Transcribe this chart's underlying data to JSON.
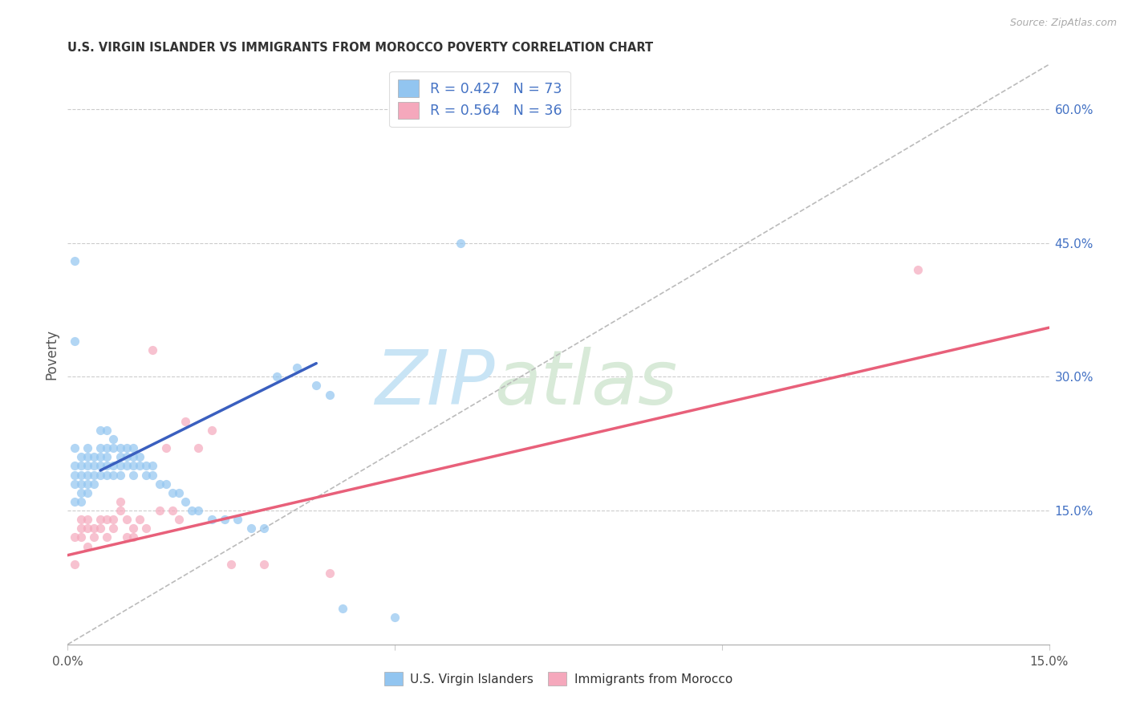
{
  "title": "U.S. VIRGIN ISLANDER VS IMMIGRANTS FROM MOROCCO POVERTY CORRELATION CHART",
  "source": "Source: ZipAtlas.com",
  "ylabel": "Poverty",
  "x_min": 0.0,
  "x_max": 0.15,
  "y_min": 0.0,
  "y_max": 0.65,
  "y_ticks": [
    0.15,
    0.3,
    0.45,
    0.6
  ],
  "y_tick_labels": [
    "15.0%",
    "30.0%",
    "45.0%",
    "60.0%"
  ],
  "legend_r1": "R = 0.427",
  "legend_n1": "N = 73",
  "legend_r2": "R = 0.564",
  "legend_n2": "N = 36",
  "color_blue": "#92C5F0",
  "color_pink": "#F5A8BC",
  "color_blue_text": "#4472C4",
  "trend_blue_color": "#3A5FBF",
  "trend_pink_color": "#E8607A",
  "trend_dash_color": "#BBBBBB",
  "watermark_zip": "ZIP",
  "watermark_atlas": "atlas",
  "label_blue": "U.S. Virgin Islanders",
  "label_pink": "Immigrants from Morocco",
  "blue_scatter_x": [
    0.001,
    0.001,
    0.001,
    0.001,
    0.001,
    0.002,
    0.002,
    0.002,
    0.002,
    0.002,
    0.002,
    0.003,
    0.003,
    0.003,
    0.003,
    0.003,
    0.003,
    0.004,
    0.004,
    0.004,
    0.004,
    0.005,
    0.005,
    0.005,
    0.005,
    0.005,
    0.006,
    0.006,
    0.006,
    0.006,
    0.006,
    0.007,
    0.007,
    0.007,
    0.007,
    0.008,
    0.008,
    0.008,
    0.008,
    0.009,
    0.009,
    0.009,
    0.01,
    0.01,
    0.01,
    0.01,
    0.011,
    0.011,
    0.012,
    0.012,
    0.013,
    0.013,
    0.014,
    0.015,
    0.016,
    0.017,
    0.018,
    0.019,
    0.02,
    0.022,
    0.024,
    0.026,
    0.028,
    0.03,
    0.032,
    0.035,
    0.038,
    0.04,
    0.042,
    0.05,
    0.001,
    0.001,
    0.06
  ],
  "blue_scatter_y": [
    0.22,
    0.2,
    0.19,
    0.18,
    0.16,
    0.21,
    0.2,
    0.19,
    0.18,
    0.17,
    0.16,
    0.22,
    0.21,
    0.2,
    0.19,
    0.18,
    0.17,
    0.21,
    0.2,
    0.19,
    0.18,
    0.24,
    0.22,
    0.21,
    0.2,
    0.19,
    0.24,
    0.22,
    0.21,
    0.2,
    0.19,
    0.23,
    0.22,
    0.2,
    0.19,
    0.22,
    0.21,
    0.2,
    0.19,
    0.22,
    0.21,
    0.2,
    0.22,
    0.21,
    0.2,
    0.19,
    0.21,
    0.2,
    0.2,
    0.19,
    0.2,
    0.19,
    0.18,
    0.18,
    0.17,
    0.17,
    0.16,
    0.15,
    0.15,
    0.14,
    0.14,
    0.14,
    0.13,
    0.13,
    0.3,
    0.31,
    0.29,
    0.28,
    0.04,
    0.03,
    0.34,
    0.43,
    0.45
  ],
  "pink_scatter_x": [
    0.001,
    0.002,
    0.002,
    0.002,
    0.003,
    0.003,
    0.003,
    0.004,
    0.004,
    0.005,
    0.005,
    0.006,
    0.006,
    0.007,
    0.007,
    0.008,
    0.008,
    0.009,
    0.009,
    0.01,
    0.01,
    0.011,
    0.012,
    0.013,
    0.014,
    0.015,
    0.016,
    0.017,
    0.018,
    0.02,
    0.022,
    0.025,
    0.03,
    0.04,
    0.13,
    0.001
  ],
  "pink_scatter_y": [
    0.12,
    0.14,
    0.13,
    0.12,
    0.14,
    0.13,
    0.11,
    0.13,
    0.12,
    0.14,
    0.13,
    0.14,
    0.12,
    0.14,
    0.13,
    0.16,
    0.15,
    0.14,
    0.12,
    0.13,
    0.12,
    0.14,
    0.13,
    0.33,
    0.15,
    0.22,
    0.15,
    0.14,
    0.25,
    0.22,
    0.24,
    0.09,
    0.09,
    0.08,
    0.42,
    0.09
  ],
  "blue_trend_x": [
    0.005,
    0.038
  ],
  "blue_trend_y": [
    0.195,
    0.315
  ],
  "pink_trend_x": [
    0.0,
    0.15
  ],
  "pink_trend_y": [
    0.1,
    0.355
  ],
  "dash_line_x": [
    0.0,
    0.15
  ],
  "dash_line_y": [
    0.0,
    0.65
  ]
}
